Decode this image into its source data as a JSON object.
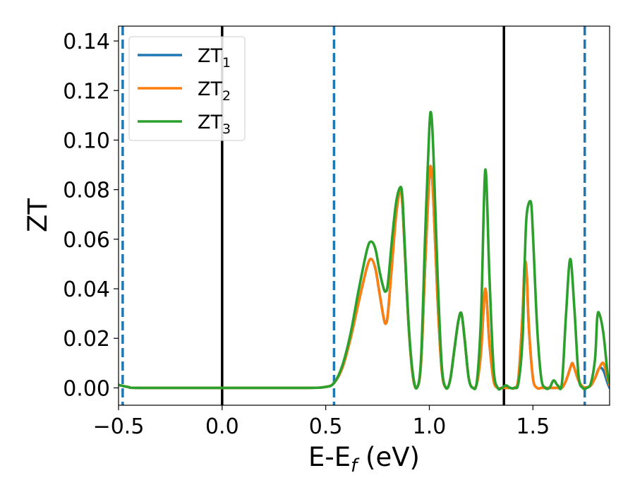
{
  "chart_data": {
    "type": "line",
    "title": "",
    "xlabel": "E-E",
    "xlabel_sub": "f",
    "xlabel_unit": " (eV)",
    "ylabel": "ZT",
    "xlim": [
      -0.5,
      1.87
    ],
    "ylim": [
      -0.007,
      0.146
    ],
    "xticks": [
      -0.5,
      0.0,
      0.5,
      1.0,
      1.5
    ],
    "xtick_labels": [
      "−0.5",
      "0.0",
      "0.5",
      "1.0",
      "1.5"
    ],
    "yticks": [
      0.0,
      0.02,
      0.04,
      0.06,
      0.08,
      0.1,
      0.12,
      0.14
    ],
    "ytick_labels": [
      "0.00",
      "0.02",
      "0.04",
      "0.06",
      "0.08",
      "0.10",
      "0.12",
      "0.14"
    ],
    "grid": false,
    "legend_position": "top-left",
    "vlines": [
      {
        "x": -0.48,
        "style": "dashed",
        "color": "#1f77b4"
      },
      {
        "x": 0.0,
        "style": "solid",
        "color": "#000000"
      },
      {
        "x": 0.54,
        "style": "dashed",
        "color": "#1f77b4"
      },
      {
        "x": 1.36,
        "style": "solid",
        "color": "#000000"
      },
      {
        "x": 1.75,
        "style": "dashed",
        "color": "#1f77b4"
      }
    ],
    "series": [
      {
        "name": "ZT",
        "sub": "1",
        "color": "#1f77b4",
        "x": [
          -0.5,
          -0.45,
          -0.4,
          0.0,
          0.4,
          0.5,
          0.54,
          0.58,
          0.62,
          0.66,
          0.7,
          0.72,
          0.74,
          0.76,
          0.78,
          0.79,
          0.8,
          0.82,
          0.84,
          0.86,
          0.87,
          0.88,
          0.9,
          0.92,
          0.94,
          0.96,
          0.98,
          1.0,
          1.01,
          1.02,
          1.04,
          1.06,
          1.08,
          1.1,
          1.12,
          1.14,
          1.155,
          1.17,
          1.19,
          1.21,
          1.23,
          1.25,
          1.27,
          1.29,
          1.31,
          1.33,
          1.35,
          1.37,
          1.39,
          1.41,
          1.43,
          1.45,
          1.46,
          1.47,
          1.48,
          1.5,
          1.52,
          1.54,
          1.56,
          1.58,
          1.6,
          1.62,
          1.64,
          1.66,
          1.68,
          1.69,
          1.7,
          1.72,
          1.74,
          1.76,
          1.78,
          1.8,
          1.82,
          1.84,
          1.86,
          1.87
        ],
        "y": [
          0.0012,
          0.0003,
          0.0,
          0.0,
          0.0,
          0.0004,
          0.002,
          0.008,
          0.02,
          0.035,
          0.049,
          0.052,
          0.048,
          0.038,
          0.028,
          0.026,
          0.03,
          0.05,
          0.07,
          0.08,
          0.074,
          0.058,
          0.025,
          0.005,
          0.0,
          0.01,
          0.05,
          0.085,
          0.088,
          0.075,
          0.035,
          0.007,
          0.0,
          0.003,
          0.015,
          0.027,
          0.03,
          0.02,
          0.004,
          0.0,
          0.002,
          0.015,
          0.04,
          0.018,
          0.003,
          0.0,
          0.0,
          0.0,
          0.0,
          0.0,
          0.004,
          0.03,
          0.05,
          0.046,
          0.025,
          0.004,
          0.0,
          0.0,
          0.0,
          0.0,
          0.0,
          0.0,
          0.0,
          0.003,
          0.008,
          0.01,
          0.008,
          0.003,
          0.0005,
          0.0002,
          0.001,
          0.004,
          0.008,
          0.007,
          0.002,
          0.0
        ]
      },
      {
        "name": "ZT",
        "sub": "2",
        "color": "#ff7f0e",
        "x": [
          -0.5,
          -0.45,
          -0.4,
          0.0,
          0.4,
          0.5,
          0.54,
          0.58,
          0.62,
          0.66,
          0.7,
          0.72,
          0.74,
          0.76,
          0.78,
          0.79,
          0.8,
          0.82,
          0.84,
          0.86,
          0.87,
          0.88,
          0.9,
          0.92,
          0.94,
          0.96,
          0.98,
          1.0,
          1.01,
          1.02,
          1.04,
          1.06,
          1.08,
          1.1,
          1.12,
          1.14,
          1.155,
          1.17,
          1.19,
          1.21,
          1.23,
          1.25,
          1.27,
          1.29,
          1.31,
          1.33,
          1.35,
          1.37,
          1.39,
          1.41,
          1.43,
          1.45,
          1.46,
          1.47,
          1.48,
          1.5,
          1.52,
          1.54,
          1.56,
          1.58,
          1.6,
          1.62,
          1.64,
          1.66,
          1.68,
          1.69,
          1.7,
          1.72,
          1.74,
          1.76,
          1.78,
          1.8,
          1.82,
          1.84,
          1.86,
          1.87
        ],
        "y": [
          0.0012,
          0.0003,
          0.0,
          0.0,
          0.0,
          0.0004,
          0.002,
          0.008,
          0.02,
          0.035,
          0.049,
          0.052,
          0.048,
          0.038,
          0.028,
          0.026,
          0.03,
          0.05,
          0.07,
          0.08,
          0.074,
          0.058,
          0.025,
          0.005,
          0.0,
          0.01,
          0.05,
          0.085,
          0.088,
          0.075,
          0.035,
          0.007,
          0.0,
          0.003,
          0.015,
          0.027,
          0.03,
          0.02,
          0.004,
          0.0,
          0.002,
          0.015,
          0.04,
          0.018,
          0.003,
          0.0,
          0.0,
          0.0,
          0.0,
          0.0,
          0.004,
          0.03,
          0.05,
          0.046,
          0.025,
          0.004,
          0.0,
          0.0,
          0.0,
          0.0,
          0.0,
          0.0,
          0.0,
          0.003,
          0.008,
          0.01,
          0.008,
          0.003,
          0.0005,
          0.0002,
          0.001,
          0.004,
          0.008,
          0.01,
          0.004,
          0.001
        ]
      },
      {
        "name": "ZT",
        "sub": "3",
        "color": "#2ca02c",
        "x": [
          -0.5,
          -0.45,
          -0.4,
          0.0,
          0.4,
          0.5,
          0.54,
          0.58,
          0.62,
          0.66,
          0.7,
          0.72,
          0.74,
          0.76,
          0.78,
          0.79,
          0.8,
          0.82,
          0.84,
          0.86,
          0.87,
          0.88,
          0.9,
          0.92,
          0.94,
          0.96,
          0.98,
          1.0,
          1.01,
          1.02,
          1.04,
          1.06,
          1.08,
          1.1,
          1.12,
          1.14,
          1.155,
          1.17,
          1.19,
          1.21,
          1.23,
          1.25,
          1.27,
          1.29,
          1.31,
          1.33,
          1.35,
          1.37,
          1.39,
          1.41,
          1.43,
          1.45,
          1.46,
          1.47,
          1.49,
          1.5,
          1.52,
          1.54,
          1.56,
          1.58,
          1.6,
          1.62,
          1.64,
          1.66,
          1.68,
          1.7,
          1.72,
          1.74,
          1.76,
          1.78,
          1.8,
          1.81,
          1.82,
          1.84,
          1.86,
          1.87
        ],
        "y": [
          0.0012,
          0.0003,
          0.0,
          0.0,
          0.0,
          0.0004,
          0.002,
          0.009,
          0.022,
          0.04,
          0.056,
          0.059,
          0.056,
          0.047,
          0.04,
          0.039,
          0.042,
          0.06,
          0.075,
          0.081,
          0.077,
          0.06,
          0.026,
          0.006,
          0.0,
          0.012,
          0.062,
          0.105,
          0.11,
          0.094,
          0.045,
          0.009,
          0.0,
          0.003,
          0.015,
          0.027,
          0.03,
          0.02,
          0.004,
          0.0,
          0.003,
          0.03,
          0.088,
          0.045,
          0.008,
          0.0,
          0.0,
          0.001,
          0.0,
          0.0,
          0.002,
          0.02,
          0.05,
          0.07,
          0.075,
          0.062,
          0.025,
          0.004,
          0.0,
          0.0,
          0.003,
          0.001,
          0.002,
          0.03,
          0.052,
          0.032,
          0.005,
          0.0,
          0.0,
          0.002,
          0.012,
          0.028,
          0.03,
          0.022,
          0.006,
          0.002
        ]
      }
    ]
  }
}
